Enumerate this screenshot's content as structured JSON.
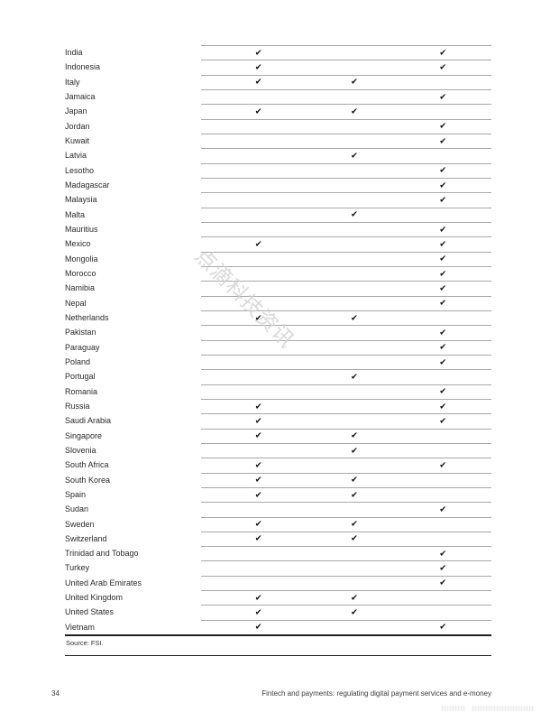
{
  "page": {
    "number": "34",
    "footer_title": "Fintech and payments: regulating digital payment services and e-money"
  },
  "watermark": {
    "text": "点滴科技资讯"
  },
  "table": {
    "source": "Source: FSI.",
    "check_glyph": "✔",
    "columns": 3,
    "rows": [
      {
        "country": "India",
        "checks": [
          1,
          0,
          1
        ]
      },
      {
        "country": "Indonesia",
        "checks": [
          1,
          0,
          1
        ]
      },
      {
        "country": "Italy",
        "checks": [
          1,
          1,
          0
        ]
      },
      {
        "country": "Jamaica",
        "checks": [
          0,
          0,
          1
        ]
      },
      {
        "country": "Japan",
        "checks": [
          1,
          1,
          0
        ]
      },
      {
        "country": "Jordan",
        "checks": [
          0,
          0,
          1
        ]
      },
      {
        "country": "Kuwait",
        "checks": [
          0,
          0,
          1
        ]
      },
      {
        "country": "Latvia",
        "checks": [
          0,
          1,
          0
        ]
      },
      {
        "country": "Lesotho",
        "checks": [
          0,
          0,
          1
        ]
      },
      {
        "country": "Madagascar",
        "checks": [
          0,
          0,
          1
        ]
      },
      {
        "country": "Malaysia",
        "checks": [
          0,
          0,
          1
        ]
      },
      {
        "country": "Malta",
        "checks": [
          0,
          1,
          0
        ]
      },
      {
        "country": "Mauritius",
        "checks": [
          0,
          0,
          1
        ]
      },
      {
        "country": "Mexico",
        "checks": [
          1,
          0,
          1
        ]
      },
      {
        "country": "Mongolia",
        "checks": [
          0,
          0,
          1
        ]
      },
      {
        "country": "Morocco",
        "checks": [
          0,
          0,
          1
        ]
      },
      {
        "country": "Namibia",
        "checks": [
          0,
          0,
          1
        ]
      },
      {
        "country": "Nepal",
        "checks": [
          0,
          0,
          1
        ]
      },
      {
        "country": "Netherlands",
        "checks": [
          1,
          1,
          0
        ]
      },
      {
        "country": "Pakistan",
        "checks": [
          0,
          0,
          1
        ]
      },
      {
        "country": "Paraguay",
        "checks": [
          0,
          0,
          1
        ]
      },
      {
        "country": "Poland",
        "checks": [
          0,
          0,
          1
        ]
      },
      {
        "country": "Portugal",
        "checks": [
          0,
          1,
          0
        ]
      },
      {
        "country": "Romania",
        "checks": [
          0,
          0,
          1
        ]
      },
      {
        "country": "Russia",
        "checks": [
          1,
          0,
          1
        ]
      },
      {
        "country": "Saudi Arabia",
        "checks": [
          1,
          0,
          1
        ]
      },
      {
        "country": "Singapore",
        "checks": [
          1,
          1,
          0
        ]
      },
      {
        "country": "Slovenia",
        "checks": [
          0,
          1,
          0
        ]
      },
      {
        "country": "South Africa",
        "checks": [
          1,
          0,
          1
        ]
      },
      {
        "country": "South Korea",
        "checks": [
          1,
          1,
          0
        ]
      },
      {
        "country": "Spain",
        "checks": [
          1,
          1,
          0
        ]
      },
      {
        "country": "Sudan",
        "checks": [
          0,
          0,
          1
        ]
      },
      {
        "country": "Sweden",
        "checks": [
          1,
          1,
          0
        ]
      },
      {
        "country": "Switzerland",
        "checks": [
          1,
          1,
          0
        ]
      },
      {
        "country": "Trinidad and Tobago",
        "checks": [
          0,
          0,
          1
        ]
      },
      {
        "country": "Turkey",
        "checks": [
          0,
          0,
          1
        ]
      },
      {
        "country": "United Arab Emirates",
        "checks": [
          0,
          0,
          1
        ]
      },
      {
        "country": "United Kingdom",
        "checks": [
          1,
          1,
          0
        ]
      },
      {
        "country": "United States",
        "checks": [
          1,
          1,
          0
        ]
      },
      {
        "country": "Vietnam",
        "checks": [
          1,
          0,
          1
        ]
      }
    ]
  },
  "colors": {
    "line": "#a9a9a9",
    "border": "#1f1f1f",
    "text": "#2b2b2b",
    "check": "#111111",
    "footer": "#3d3d3d",
    "watermark": "#d0d0d0",
    "source": "#333333"
  }
}
